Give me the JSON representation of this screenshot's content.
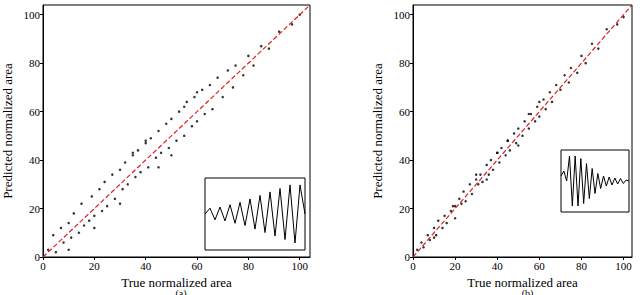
{
  "chart_data": [
    {
      "type": "scatter",
      "label": "(a)",
      "xlabel": "True normalized area",
      "ylabel": "Predicted normalized area",
      "xlim": [
        0,
        104
      ],
      "ylim": [
        0,
        104
      ],
      "xticks": [
        0,
        20,
        40,
        60,
        80,
        100
      ],
      "yticks": [
        0,
        20,
        40,
        60,
        80,
        100
      ],
      "grid": false,
      "color": "#000000",
      "marker": "circle",
      "x": [
        2,
        4,
        5,
        7,
        8,
        10,
        11,
        12,
        14,
        15,
        16,
        18,
        19,
        20,
        22,
        23,
        24,
        25,
        27,
        28,
        30,
        31,
        32,
        33,
        35,
        36,
        37,
        38,
        40,
        41,
        42,
        44,
        45,
        46,
        48,
        49,
        50,
        52,
        53,
        55,
        56,
        58,
        59,
        60,
        62,
        63,
        65,
        66,
        68,
        70,
        72,
        74,
        75,
        78,
        80,
        82,
        85,
        88,
        92,
        97,
        100,
        20,
        30,
        40,
        50,
        60,
        10,
        45,
        35,
        55
      ],
      "values": [
        3,
        9,
        2,
        12,
        6,
        14,
        8,
        18,
        10,
        22,
        13,
        15,
        25,
        17,
        28,
        19,
        31,
        21,
        34,
        24,
        36,
        28,
        39,
        30,
        42,
        33,
        44,
        35,
        47,
        37,
        49,
        41,
        52,
        43,
        55,
        45,
        57,
        48,
        60,
        50,
        64,
        54,
        66,
        56,
        69,
        59,
        71,
        61,
        74,
        66,
        77,
        70,
        79,
        75,
        83,
        79,
        87,
        86,
        93,
        96,
        100,
        12,
        22,
        48,
        42,
        68,
        3,
        37,
        43,
        62
      ],
      "reference_line": {
        "x": [
          0,
          104
        ],
        "values": [
          0,
          104
        ],
        "color": "#e02020",
        "line_style": "dashed"
      },
      "inset": {
        "values": [
          0.5,
          0.6,
          0.4,
          0.62,
          0.38,
          0.66,
          0.34,
          0.7,
          0.3,
          0.76,
          0.24,
          0.82,
          0.18,
          0.88,
          0.12,
          0.94,
          0.06,
          1,
          0,
          1,
          0.5
        ],
        "color": "#000000"
      }
    },
    {
      "type": "scatter",
      "label": "(b)",
      "xlabel": "True normalized area",
      "ylabel": "Predicted normalized area",
      "xlim": [
        0,
        104
      ],
      "ylim": [
        0,
        104
      ],
      "xticks": [
        0,
        20,
        40,
        60,
        80,
        100
      ],
      "yticks": [
        0,
        20,
        40,
        60,
        80,
        100
      ],
      "grid": false,
      "color": "#000000",
      "marker": "circle",
      "x": [
        2,
        4,
        5,
        7,
        8,
        10,
        11,
        12,
        14,
        15,
        16,
        18,
        19,
        20,
        22,
        23,
        24,
        25,
        27,
        28,
        30,
        31,
        32,
        33,
        35,
        36,
        37,
        38,
        40,
        41,
        42,
        44,
        45,
        46,
        48,
        49,
        50,
        52,
        53,
        55,
        56,
        58,
        59,
        60,
        62,
        63,
        65,
        66,
        68,
        70,
        72,
        74,
        75,
        78,
        80,
        82,
        85,
        88,
        92,
        97,
        100,
        20,
        30,
        40,
        50,
        60,
        10,
        45,
        35,
        55
      ],
      "values": [
        3,
        6,
        4,
        9,
        7,
        12,
        9,
        15,
        12,
        17,
        14,
        19,
        21,
        21,
        24,
        22,
        27,
        23,
        30,
        26,
        32,
        30,
        34,
        31,
        38,
        34,
        40,
        36,
        43,
        39,
        45,
        42,
        48,
        44,
        51,
        47,
        53,
        50,
        56,
        53,
        59,
        56,
        62,
        58,
        65,
        61,
        68,
        64,
        71,
        69,
        75,
        72,
        78,
        76,
        83,
        80,
        88,
        86,
        94,
        96,
        99,
        16,
        34,
        43,
        46,
        64,
        8,
        48,
        32,
        59
      ],
      "reference_line": {
        "x": [
          0,
          104
        ],
        "values": [
          0,
          104
        ],
        "color": "#e02020",
        "line_style": "dashed"
      },
      "inset": {
        "values": [
          0.6,
          0.7,
          0.5,
          1,
          0,
          1,
          0,
          0.95,
          0.05,
          0.85,
          0.15,
          0.75,
          0.25,
          0.65,
          0.35,
          0.6,
          0.4,
          0.58,
          0.42,
          0.56,
          0.44,
          0.55,
          0.45,
          0.52,
          0.5
        ],
        "color": "#000000"
      }
    }
  ]
}
